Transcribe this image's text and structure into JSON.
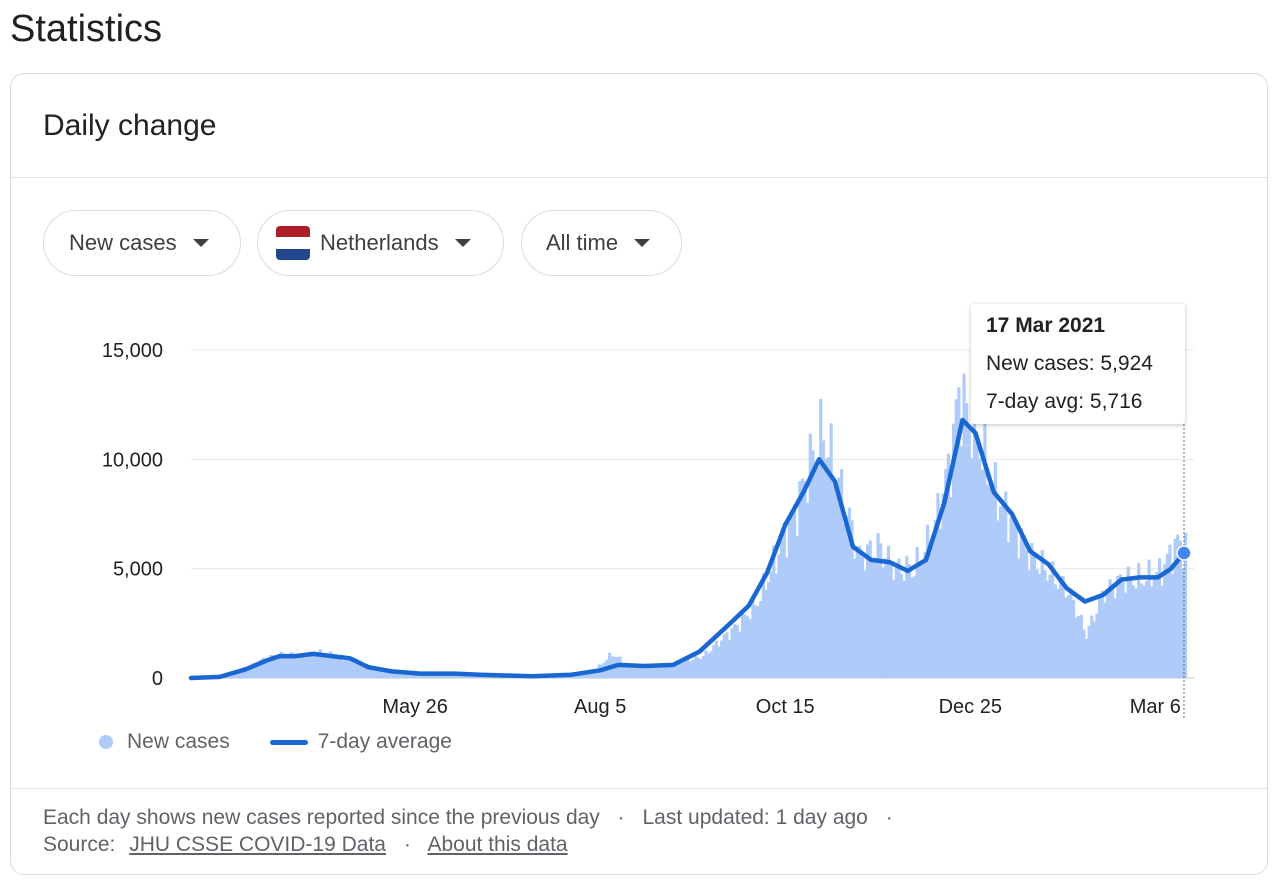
{
  "page": {
    "title": "Statistics"
  },
  "card": {
    "title": "Daily change",
    "chips": {
      "metric": "New cases",
      "country": "Netherlands",
      "range": "All time"
    },
    "legend": {
      "bars": "New cases",
      "line": "7-day average"
    },
    "tooltip": {
      "date": "17 Mar 2021",
      "new_cases_label": "New cases: 5,924",
      "avg_label": "7-day avg: 5,716"
    },
    "footer": {
      "line1": "Each day shows new cases reported since the previous day",
      "sep": "·",
      "updated": "Last updated: 1 day ago",
      "source_label": "Source:",
      "source_link": "JHU CSSE COVID-19 Data",
      "about_link": "About this data"
    }
  },
  "colors": {
    "bar": "#aecbfa",
    "line": "#1967d2",
    "flag_red": "#ae1c28",
    "flag_white": "#ffffff",
    "flag_blue": "#21468b"
  },
  "chart_data": {
    "type": "bar",
    "ylim": [
      0,
      15000
    ],
    "yticks": [
      0,
      5000,
      10000,
      15000
    ],
    "ytick_labels": [
      "0",
      "5,000",
      "10,000",
      "15,000"
    ],
    "xrange": [
      "2020-03-01",
      "2021-03-17"
    ],
    "xticks": [
      {
        "date": "2020-05-26",
        "label": "May 26"
      },
      {
        "date": "2020-08-05",
        "label": "Aug 5"
      },
      {
        "date": "2020-10-15",
        "label": "Oct 15"
      },
      {
        "date": "2020-12-25",
        "label": "Dec 25"
      },
      {
        "date": "2021-03-06",
        "label": "Mar 6"
      }
    ],
    "highlight": {
      "date": "2021-03-17",
      "new_cases": 5924,
      "avg": 5716
    },
    "series": [
      {
        "name": "New cases",
        "kind": "bar",
        "points": [
          [
            "2020-03-01",
            10
          ],
          [
            "2020-03-08",
            100
          ],
          [
            "2020-03-15",
            200
          ],
          [
            "2020-03-22",
            500
          ],
          [
            "2020-03-29",
            900
          ],
          [
            "2020-04-05",
            1100
          ],
          [
            "2020-04-12",
            1000
          ],
          [
            "2020-04-19",
            1150
          ],
          [
            "2020-04-26",
            1000
          ],
          [
            "2020-05-03",
            800
          ],
          [
            "2020-05-10",
            400
          ],
          [
            "2020-05-17",
            300
          ],
          [
            "2020-05-24",
            200
          ],
          [
            "2020-06-07",
            180
          ],
          [
            "2020-06-21",
            150
          ],
          [
            "2020-07-05",
            80
          ],
          [
            "2020-07-19",
            70
          ],
          [
            "2020-08-02",
            300
          ],
          [
            "2020-08-09",
            1100
          ],
          [
            "2020-08-16",
            550
          ],
          [
            "2020-08-30",
            550
          ],
          [
            "2020-09-13",
            1000
          ],
          [
            "2020-09-27",
            2500
          ],
          [
            "2020-10-04",
            3500
          ],
          [
            "2020-10-11",
            5500
          ],
          [
            "2020-10-18",
            7500
          ],
          [
            "2020-10-25",
            10200
          ],
          [
            "2020-10-29",
            11200
          ],
          [
            "2020-11-05",
            8500
          ],
          [
            "2020-11-12",
            5500
          ],
          [
            "2020-11-19",
            6000
          ],
          [
            "2020-11-26",
            5000
          ],
          [
            "2020-12-03",
            5000
          ],
          [
            "2020-12-10",
            6500
          ],
          [
            "2020-12-17",
            10000
          ],
          [
            "2020-12-20",
            13000
          ],
          [
            "2020-12-27",
            11000
          ],
          [
            "2021-01-03",
            8500
          ],
          [
            "2021-01-10",
            7000
          ],
          [
            "2021-01-17",
            5500
          ],
          [
            "2021-01-24",
            4800
          ],
          [
            "2021-01-31",
            4000
          ],
          [
            "2021-02-07",
            2000
          ],
          [
            "2021-02-14",
            4000
          ],
          [
            "2021-02-21",
            4500
          ],
          [
            "2021-02-28",
            4500
          ],
          [
            "2021-03-07",
            4800
          ],
          [
            "2021-03-14",
            6200
          ],
          [
            "2021-03-17",
            5924
          ]
        ]
      },
      {
        "name": "7-day average",
        "kind": "line",
        "points": [
          [
            "2020-03-01",
            0
          ],
          [
            "2020-03-12",
            50
          ],
          [
            "2020-03-22",
            400
          ],
          [
            "2020-03-30",
            800
          ],
          [
            "2020-04-04",
            1000
          ],
          [
            "2020-04-10",
            1000
          ],
          [
            "2020-04-17",
            1100
          ],
          [
            "2020-04-24",
            1000
          ],
          [
            "2020-05-01",
            900
          ],
          [
            "2020-05-08",
            500
          ],
          [
            "2020-05-17",
            300
          ],
          [
            "2020-05-28",
            200
          ],
          [
            "2020-06-10",
            200
          ],
          [
            "2020-06-20",
            150
          ],
          [
            "2020-07-10",
            80
          ],
          [
            "2020-07-25",
            150
          ],
          [
            "2020-08-05",
            350
          ],
          [
            "2020-08-12",
            600
          ],
          [
            "2020-08-22",
            550
          ],
          [
            "2020-09-02",
            600
          ],
          [
            "2020-09-12",
            1200
          ],
          [
            "2020-09-23",
            2400
          ],
          [
            "2020-10-01",
            3300
          ],
          [
            "2020-10-08",
            4800
          ],
          [
            "2020-10-15",
            7000
          ],
          [
            "2020-10-22",
            8500
          ],
          [
            "2020-10-28",
            10000
          ],
          [
            "2020-11-03",
            9000
          ],
          [
            "2020-11-10",
            6000
          ],
          [
            "2020-11-17",
            5400
          ],
          [
            "2020-11-24",
            5300
          ],
          [
            "2020-12-01",
            4900
          ],
          [
            "2020-12-08",
            5400
          ],
          [
            "2020-12-15",
            8000
          ],
          [
            "2020-12-22",
            11800
          ],
          [
            "2020-12-27",
            11200
          ],
          [
            "2021-01-03",
            8500
          ],
          [
            "2021-01-10",
            7500
          ],
          [
            "2021-01-17",
            5800
          ],
          [
            "2021-01-24",
            5200
          ],
          [
            "2021-01-31",
            4100
          ],
          [
            "2021-02-07",
            3500
          ],
          [
            "2021-02-14",
            3800
          ],
          [
            "2021-02-21",
            4500
          ],
          [
            "2021-02-28",
            4600
          ],
          [
            "2021-03-07",
            4600
          ],
          [
            "2021-03-12",
            5000
          ],
          [
            "2021-03-17",
            5716
          ]
        ]
      }
    ]
  }
}
